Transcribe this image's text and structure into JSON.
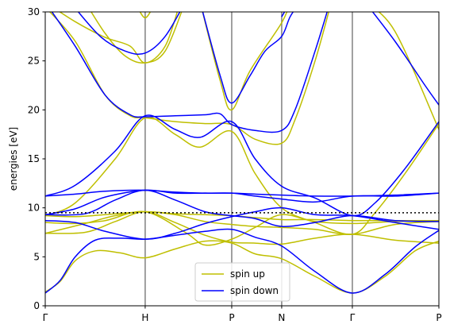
{
  "chart_data": {
    "type": "line",
    "title": "",
    "xlabel": "",
    "ylabel": "energies [eV]",
    "ylim": [
      0,
      30
    ],
    "yticks": [
      0,
      5,
      10,
      15,
      20,
      25,
      30
    ],
    "kpath": [
      {
        "label": "Γ",
        "x": 0.0
      },
      {
        "label": "H",
        "x": 1.0
      },
      {
        "label": "P",
        "x": 1.866
      },
      {
        "label": "N",
        "x": 2.366
      },
      {
        "label": "Γ",
        "x": 3.073
      },
      {
        "label": "P",
        "x": 3.939
      }
    ],
    "fermi_level": 9.5,
    "legend": {
      "placement": "lower center"
    },
    "series": [
      {
        "name": "spin up",
        "color": "#bfbf00",
        "bands": [
          [
            [
              0,
              1.4
            ],
            [
              0.15,
              2.5
            ],
            [
              0.3,
              4.6
            ],
            [
              0.5,
              5.6
            ],
            [
              0.75,
              5.4
            ],
            [
              1.0,
              4.9
            ],
            [
              1.3,
              5.8
            ],
            [
              1.6,
              6.6
            ],
            [
              1.866,
              6.4
            ],
            [
              2.1,
              5.3
            ],
            [
              2.366,
              4.8
            ],
            [
              2.7,
              3.0
            ],
            [
              3.073,
              1.3
            ],
            [
              3.4,
              3.0
            ],
            [
              3.7,
              5.6
            ],
            [
              3.939,
              6.6
            ]
          ],
          [
            [
              0,
              7.4
            ],
            [
              0.4,
              7.5
            ],
            [
              0.7,
              8.6
            ],
            [
              1.0,
              9.6
            ],
            [
              1.3,
              8.5
            ],
            [
              1.6,
              7.2
            ],
            [
              1.866,
              6.5
            ],
            [
              2.1,
              6.4
            ],
            [
              2.366,
              6.3
            ],
            [
              2.7,
              6.9
            ],
            [
              3.073,
              7.3
            ],
            [
              3.5,
              6.7
            ],
            [
              3.939,
              6.4
            ]
          ],
          [
            [
              0,
              7.4
            ],
            [
              0.4,
              8.4
            ],
            [
              0.7,
              9.2
            ],
            [
              1.0,
              9.6
            ],
            [
              1.3,
              9.3
            ],
            [
              1.6,
              8.6
            ],
            [
              1.866,
              8.3
            ],
            [
              2.1,
              8.1
            ],
            [
              2.366,
              8.0
            ],
            [
              2.7,
              7.8
            ],
            [
              3.073,
              7.3
            ],
            [
              3.5,
              8.3
            ],
            [
              3.939,
              8.6
            ]
          ],
          [
            [
              0,
              8.5
            ],
            [
              0.3,
              8.4
            ],
            [
              0.6,
              8.7
            ],
            [
              1.0,
              9.6
            ],
            [
              1.4,
              7.5
            ],
            [
              1.6,
              6.2
            ],
            [
              1.866,
              6.8
            ],
            [
              2.1,
              8.0
            ],
            [
              2.366,
              9.3
            ],
            [
              2.7,
              8.6
            ],
            [
              3.073,
              8.4
            ],
            [
              3.5,
              8.6
            ],
            [
              3.939,
              8.7
            ]
          ],
          [
            [
              0,
              9.2
            ],
            [
              0.3,
              9.1
            ],
            [
              0.6,
              9.3
            ],
            [
              1.0,
              9.6
            ],
            [
              1.3,
              9.4
            ],
            [
              1.6,
              9.3
            ],
            [
              1.866,
              9.2
            ],
            [
              2.1,
              9.0
            ],
            [
              2.366,
              8.8
            ],
            [
              2.7,
              8.8
            ],
            [
              3.073,
              8.7
            ],
            [
              3.5,
              8.7
            ],
            [
              3.939,
              8.7
            ]
          ],
          [
            [
              0,
              9.2
            ],
            [
              0.3,
              10.5
            ],
            [
              0.7,
              15.0
            ],
            [
              1.0,
              19.2
            ],
            [
              1.3,
              17.5
            ],
            [
              1.55,
              16.2
            ],
            [
              1.866,
              17.8
            ],
            [
              2.1,
              13.5
            ],
            [
              2.366,
              10.0
            ],
            [
              2.7,
              8.5
            ],
            [
              3.073,
              7.3
            ],
            [
              3.3,
              9.5
            ],
            [
              3.6,
              13.5
            ],
            [
              3.939,
              18.6
            ]
          ],
          [
            [
              0,
              30.5
            ],
            [
              0.3,
              27.0
            ],
            [
              0.6,
              21.5
            ],
            [
              0.85,
              19.4
            ],
            [
              1.0,
              19.2
            ],
            [
              1.3,
              18.8
            ],
            [
              1.6,
              18.6
            ],
            [
              1.866,
              18.5
            ],
            [
              2.1,
              17.0
            ],
            [
              2.366,
              16.6
            ],
            [
              2.5,
              19.0
            ],
            [
              2.7,
              25.0
            ],
            [
              2.85,
              30.5
            ]
          ],
          [
            [
              0,
              31
            ],
            [
              0.3,
              29.0
            ],
            [
              0.6,
              27.4
            ],
            [
              0.85,
              26.5
            ],
            [
              1.0,
              24.8
            ],
            [
              1.2,
              26.5
            ],
            [
              1.35,
              31
            ]
          ],
          [
            [
              0.4,
              31
            ],
            [
              0.6,
              27.8
            ],
            [
              0.8,
              25.5
            ],
            [
              1.0,
              24.8
            ],
            [
              1.2,
              26.0
            ],
            [
              1.4,
              31
            ]
          ],
          [
            [
              0.9,
              31
            ],
            [
              1.0,
              29.4
            ],
            [
              1.1,
              31
            ]
          ],
          [
            [
              1.55,
              31
            ],
            [
              1.75,
              23.0
            ],
            [
              1.866,
              20.0
            ],
            [
              2.05,
              24.0
            ],
            [
              2.366,
              28.9
            ],
            [
              2.45,
              31
            ]
          ],
          [
            [
              3.2,
              31
            ],
            [
              3.5,
              28.0
            ],
            [
              3.939,
              18.0
            ]
          ]
        ]
      },
      {
        "name": "spin down",
        "color": "#0000ff",
        "bands": [
          [
            [
              0,
              1.3
            ],
            [
              0.15,
              2.6
            ],
            [
              0.3,
              5.0
            ],
            [
              0.5,
              6.7
            ],
            [
              0.75,
              6.9
            ],
            [
              1.0,
              6.8
            ],
            [
              1.3,
              7.2
            ],
            [
              1.6,
              7.6
            ],
            [
              1.866,
              7.8
            ],
            [
              2.1,
              7.0
            ],
            [
              2.366,
              6.1
            ],
            [
              2.7,
              3.5
            ],
            [
              3.073,
              1.3
            ],
            [
              3.4,
              3.2
            ],
            [
              3.7,
              6.0
            ],
            [
              3.939,
              7.7
            ]
          ],
          [
            [
              0,
              8.7
            ],
            [
              0.3,
              8.5
            ],
            [
              0.6,
              7.6
            ],
            [
              1.0,
              6.8
            ],
            [
              1.3,
              7.4
            ],
            [
              1.6,
              8.4
            ],
            [
              1.866,
              9.1
            ],
            [
              2.1,
              9.6
            ],
            [
              2.366,
              10.0
            ],
            [
              2.7,
              9.3
            ],
            [
              3.073,
              9.2
            ],
            [
              3.5,
              8.5
            ],
            [
              3.939,
              7.8
            ]
          ],
          [
            [
              0,
              9.3
            ],
            [
              0.4,
              9.4
            ],
            [
              0.7,
              10.8
            ],
            [
              1.0,
              11.8
            ],
            [
              1.3,
              10.8
            ],
            [
              1.6,
              9.6
            ],
            [
              1.866,
              9.2
            ],
            [
              2.1,
              8.9
            ],
            [
              2.366,
              8.1
            ],
            [
              2.7,
              8.5
            ],
            [
              3.073,
              9.2
            ],
            [
              3.5,
              8.7
            ],
            [
              3.939,
              8.6
            ]
          ],
          [
            [
              0,
              9.3
            ],
            [
              0.3,
              9.9
            ],
            [
              0.6,
              11.1
            ],
            [
              1.0,
              11.8
            ],
            [
              1.3,
              11.5
            ],
            [
              1.6,
              11.5
            ],
            [
              1.866,
              11.5
            ],
            [
              2.1,
              11.4
            ],
            [
              2.366,
              11.3
            ],
            [
              2.7,
              11.2
            ],
            [
              3.073,
              11.2
            ],
            [
              3.5,
              11.3
            ],
            [
              3.939,
              11.5
            ]
          ],
          [
            [
              0,
              11.2
            ],
            [
              0.3,
              11.4
            ],
            [
              0.6,
              11.7
            ],
            [
              1.0,
              11.8
            ],
            [
              1.3,
              11.6
            ],
            [
              1.6,
              11.5
            ],
            [
              1.866,
              11.5
            ],
            [
              2.1,
              11.2
            ],
            [
              2.366,
              10.9
            ],
            [
              2.7,
              10.6
            ],
            [
              3.073,
              11.2
            ],
            [
              3.5,
              11.2
            ],
            [
              3.939,
              11.5
            ]
          ],
          [
            [
              0,
              11.2
            ],
            [
              0.3,
              12.3
            ],
            [
              0.7,
              15.8
            ],
            [
              1.0,
              19.4
            ],
            [
              1.3,
              18.0
            ],
            [
              1.55,
              17.2
            ],
            [
              1.866,
              18.8
            ],
            [
              2.1,
              15.0
            ],
            [
              2.366,
              12.2
            ],
            [
              2.7,
              11.0
            ],
            [
              3.073,
              9.2
            ],
            [
              3.3,
              10.5
            ],
            [
              3.6,
              14.0
            ],
            [
              3.939,
              18.8
            ]
          ],
          [
            [
              0,
              31
            ],
            [
              0.3,
              26.5
            ],
            [
              0.6,
              21.5
            ],
            [
              0.85,
              19.5
            ],
            [
              1.0,
              19.3
            ],
            [
              1.3,
              19.4
            ],
            [
              1.6,
              19.5
            ],
            [
              1.75,
              19.6
            ],
            [
              1.866,
              18.5
            ],
            [
              2.1,
              17.9
            ],
            [
              2.366,
              17.9
            ],
            [
              2.5,
              20.0
            ],
            [
              2.7,
              26.0
            ],
            [
              2.85,
              31
            ]
          ],
          [
            [
              0.25,
              31
            ],
            [
              0.55,
              27.5
            ],
            [
              0.8,
              26.0
            ],
            [
              1.0,
              25.8
            ],
            [
              1.2,
              27.5
            ],
            [
              1.4,
              31
            ]
          ],
          [
            [
              1.55,
              31
            ],
            [
              1.75,
              23.5
            ],
            [
              1.866,
              20.7
            ],
            [
              2.05,
              23.5
            ],
            [
              2.2,
              26.0
            ],
            [
              2.366,
              27.5
            ],
            [
              2.45,
              29.5
            ],
            [
              2.55,
              31
            ]
          ],
          [
            [
              2.366,
              29.5
            ],
            [
              2.45,
              31
            ]
          ],
          [
            [
              3.2,
              31
            ],
            [
              3.5,
              27.0
            ],
            [
              3.8,
              22.5
            ],
            [
              3.939,
              20.5
            ]
          ]
        ]
      }
    ]
  }
}
